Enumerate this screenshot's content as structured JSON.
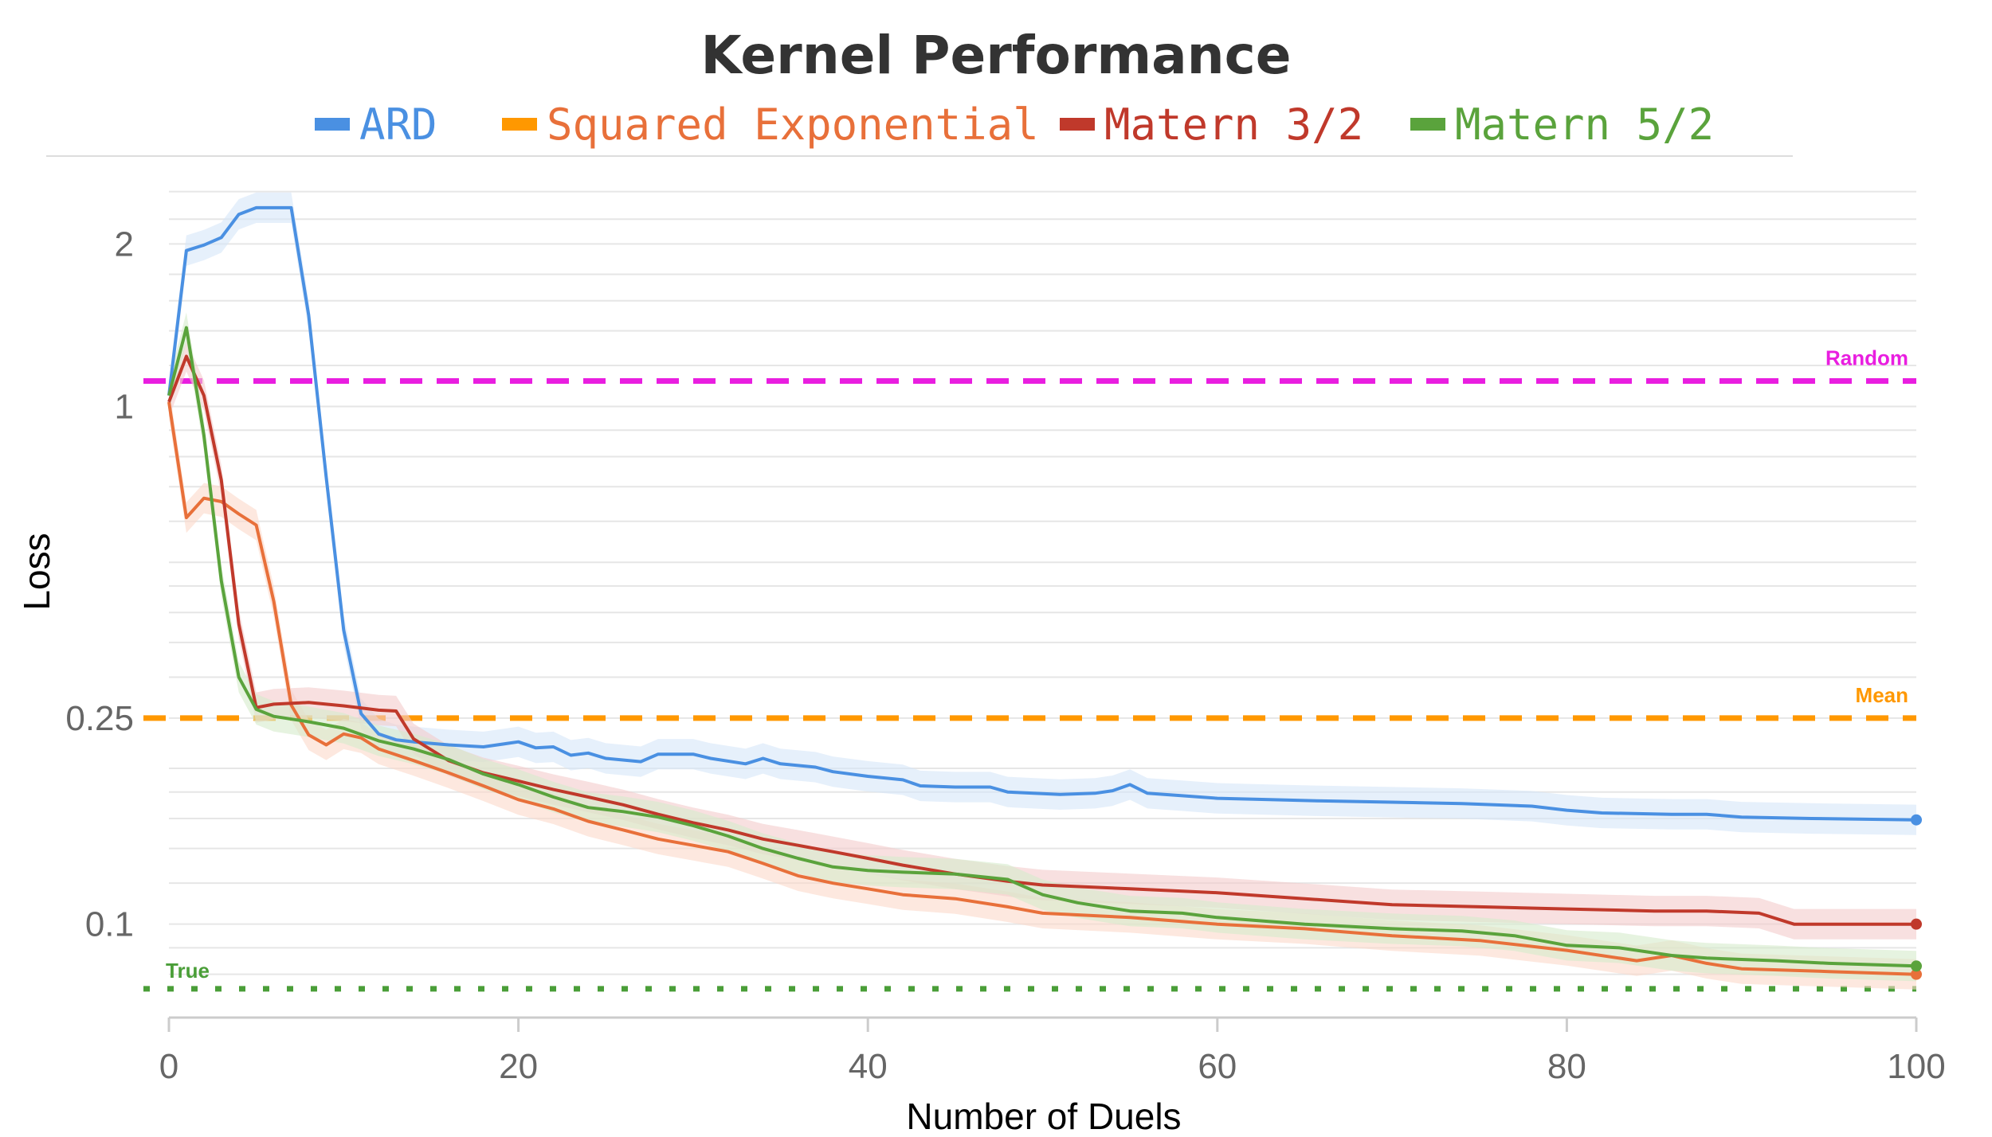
{
  "chart_data": {
    "type": "line",
    "title": "Kernel Performance",
    "xlabel": "Number of Duels",
    "ylabel": "Loss",
    "y_scale": "log",
    "xlim": [
      0,
      100
    ],
    "ylim": [
      0.066,
      2.95
    ],
    "x_ticks": [
      "0",
      "20",
      "40",
      "60",
      "80",
      "100"
    ],
    "y_ticks": [
      "2",
      "1",
      "0.25",
      "0.1"
    ],
    "y_tick_values": [
      2.06,
      1.0,
      0.25,
      0.1
    ],
    "legend_position": "top",
    "series": [
      {
        "name": "ARD",
        "color": "#4a90e2",
        "band_color": "#d5e6f8",
        "points": [
          [
            0,
            1.05
          ],
          [
            1,
            2.0
          ],
          [
            2,
            2.05
          ],
          [
            3,
            2.12
          ],
          [
            4,
            2.35
          ],
          [
            5,
            2.42
          ],
          [
            6,
            2.42
          ],
          [
            7,
            2.42
          ],
          [
            8,
            1.5
          ],
          [
            9,
            0.73
          ],
          [
            10,
            0.37
          ],
          [
            11,
            0.255
          ],
          [
            12,
            0.233
          ],
          [
            13,
            0.227
          ],
          [
            14,
            0.225
          ],
          [
            16,
            0.222
          ],
          [
            18,
            0.22
          ],
          [
            20,
            0.225
          ],
          [
            21,
            0.219
          ],
          [
            22,
            0.22
          ],
          [
            23,
            0.212
          ],
          [
            24,
            0.214
          ],
          [
            25,
            0.209
          ],
          [
            27,
            0.206
          ],
          [
            28,
            0.213
          ],
          [
            30,
            0.213
          ],
          [
            31,
            0.209
          ],
          [
            33,
            0.204
          ],
          [
            34,
            0.209
          ],
          [
            35,
            0.204
          ],
          [
            37,
            0.201
          ],
          [
            38,
            0.197
          ],
          [
            40,
            0.193
          ],
          [
            42,
            0.19
          ],
          [
            43,
            0.185
          ],
          [
            45,
            0.184
          ],
          [
            47,
            0.184
          ],
          [
            48,
            0.18
          ],
          [
            51,
            0.178
          ],
          [
            53,
            0.179
          ],
          [
            54,
            0.181
          ],
          [
            55,
            0.186
          ],
          [
            56,
            0.179
          ],
          [
            58,
            0.177
          ],
          [
            60,
            0.175
          ],
          [
            63,
            0.174
          ],
          [
            66,
            0.173
          ],
          [
            70,
            0.172
          ],
          [
            74,
            0.171
          ],
          [
            78,
            0.169
          ],
          [
            80,
            0.166
          ],
          [
            82,
            0.164
          ],
          [
            86,
            0.163
          ],
          [
            88,
            0.163
          ],
          [
            90,
            0.161
          ],
          [
            94,
            0.16
          ],
          [
            100,
            0.159
          ]
        ]
      },
      {
        "name": "Squared Exponential",
        "color": "#e8703a",
        "legend_color": "#ff9800",
        "band_color": "#fbd9c9",
        "points": [
          [
            0,
            1.02
          ],
          [
            1,
            0.61
          ],
          [
            2,
            0.665
          ],
          [
            3,
            0.655
          ],
          [
            4,
            0.62
          ],
          [
            5,
            0.59
          ],
          [
            6,
            0.42
          ],
          [
            7,
            0.265
          ],
          [
            8,
            0.232
          ],
          [
            9,
            0.222
          ],
          [
            10,
            0.233
          ],
          [
            11,
            0.229
          ],
          [
            12,
            0.218
          ],
          [
            14,
            0.207
          ],
          [
            16,
            0.196
          ],
          [
            18,
            0.185
          ],
          [
            20,
            0.174
          ],
          [
            22,
            0.167
          ],
          [
            24,
            0.158
          ],
          [
            26,
            0.152
          ],
          [
            28,
            0.146
          ],
          [
            30,
            0.142
          ],
          [
            32,
            0.138
          ],
          [
            34,
            0.131
          ],
          [
            36,
            0.124
          ],
          [
            38,
            0.12
          ],
          [
            40,
            0.117
          ],
          [
            42,
            0.114
          ],
          [
            45,
            0.112
          ],
          [
            48,
            0.108
          ],
          [
            50,
            0.105
          ],
          [
            55,
            0.103
          ],
          [
            60,
            0.1
          ],
          [
            65,
            0.098
          ],
          [
            70,
            0.095
          ],
          [
            75,
            0.093
          ],
          [
            80,
            0.089
          ],
          [
            84,
            0.085
          ],
          [
            86,
            0.087
          ],
          [
            88,
            0.084
          ],
          [
            90,
            0.082
          ],
          [
            95,
            0.081
          ],
          [
            100,
            0.08
          ]
        ]
      },
      {
        "name": "Matern 3/2",
        "color": "#c0392b",
        "band_color": "#f4cccc",
        "points": [
          [
            0,
            1.02
          ],
          [
            1,
            1.25
          ],
          [
            2,
            1.05
          ],
          [
            3,
            0.72
          ],
          [
            4,
            0.38
          ],
          [
            5,
            0.262
          ],
          [
            6,
            0.266
          ],
          [
            8,
            0.268
          ],
          [
            10,
            0.264
          ],
          [
            12,
            0.259
          ],
          [
            13,
            0.258
          ],
          [
            14,
            0.228
          ],
          [
            16,
            0.207
          ],
          [
            18,
            0.196
          ],
          [
            20,
            0.189
          ],
          [
            22,
            0.182
          ],
          [
            24,
            0.176
          ],
          [
            26,
            0.17
          ],
          [
            28,
            0.163
          ],
          [
            30,
            0.157
          ],
          [
            32,
            0.152
          ],
          [
            34,
            0.146
          ],
          [
            36,
            0.142
          ],
          [
            38,
            0.138
          ],
          [
            40,
            0.134
          ],
          [
            42,
            0.13
          ],
          [
            45,
            0.125
          ],
          [
            48,
            0.121
          ],
          [
            50,
            0.119
          ],
          [
            55,
            0.117
          ],
          [
            60,
            0.115
          ],
          [
            65,
            0.112
          ],
          [
            70,
            0.109
          ],
          [
            75,
            0.108
          ],
          [
            80,
            0.107
          ],
          [
            85,
            0.106
          ],
          [
            88,
            0.106
          ],
          [
            91,
            0.105
          ],
          [
            93,
            0.1
          ],
          [
            100,
            0.1
          ]
        ]
      },
      {
        "name": "Matern 5/2",
        "color": "#5aa33c",
        "band_color": "#d6ebcc",
        "points": [
          [
            0,
            1.05
          ],
          [
            1,
            1.42
          ],
          [
            2,
            0.88
          ],
          [
            3,
            0.46
          ],
          [
            4,
            0.3
          ],
          [
            5,
            0.26
          ],
          [
            6,
            0.252
          ],
          [
            8,
            0.246
          ],
          [
            10,
            0.239
          ],
          [
            12,
            0.226
          ],
          [
            14,
            0.218
          ],
          [
            16,
            0.208
          ],
          [
            18,
            0.195
          ],
          [
            20,
            0.186
          ],
          [
            22,
            0.176
          ],
          [
            24,
            0.168
          ],
          [
            26,
            0.165
          ],
          [
            28,
            0.161
          ],
          [
            30,
            0.155
          ],
          [
            32,
            0.148
          ],
          [
            34,
            0.14
          ],
          [
            36,
            0.134
          ],
          [
            38,
            0.129
          ],
          [
            40,
            0.127
          ],
          [
            42,
            0.126
          ],
          [
            45,
            0.125
          ],
          [
            48,
            0.122
          ],
          [
            50,
            0.114
          ],
          [
            52,
            0.11
          ],
          [
            55,
            0.106
          ],
          [
            58,
            0.105
          ],
          [
            60,
            0.103
          ],
          [
            65,
            0.1
          ],
          [
            70,
            0.098
          ],
          [
            74,
            0.097
          ],
          [
            77,
            0.095
          ],
          [
            80,
            0.091
          ],
          [
            83,
            0.09
          ],
          [
            86,
            0.087
          ],
          [
            88,
            0.086
          ],
          [
            92,
            0.085
          ],
          [
            95,
            0.084
          ],
          [
            100,
            0.083
          ]
        ]
      }
    ],
    "reference_lines": [
      {
        "label": "Random",
        "value": 1.12,
        "color": "#e91ee0",
        "style": "dashed"
      },
      {
        "label": "Mean",
        "value": 0.25,
        "color": "#ff9800",
        "style": "dashed"
      },
      {
        "label": "True",
        "value": 0.075,
        "color": "#4a9e38",
        "style": "dotted"
      }
    ]
  }
}
